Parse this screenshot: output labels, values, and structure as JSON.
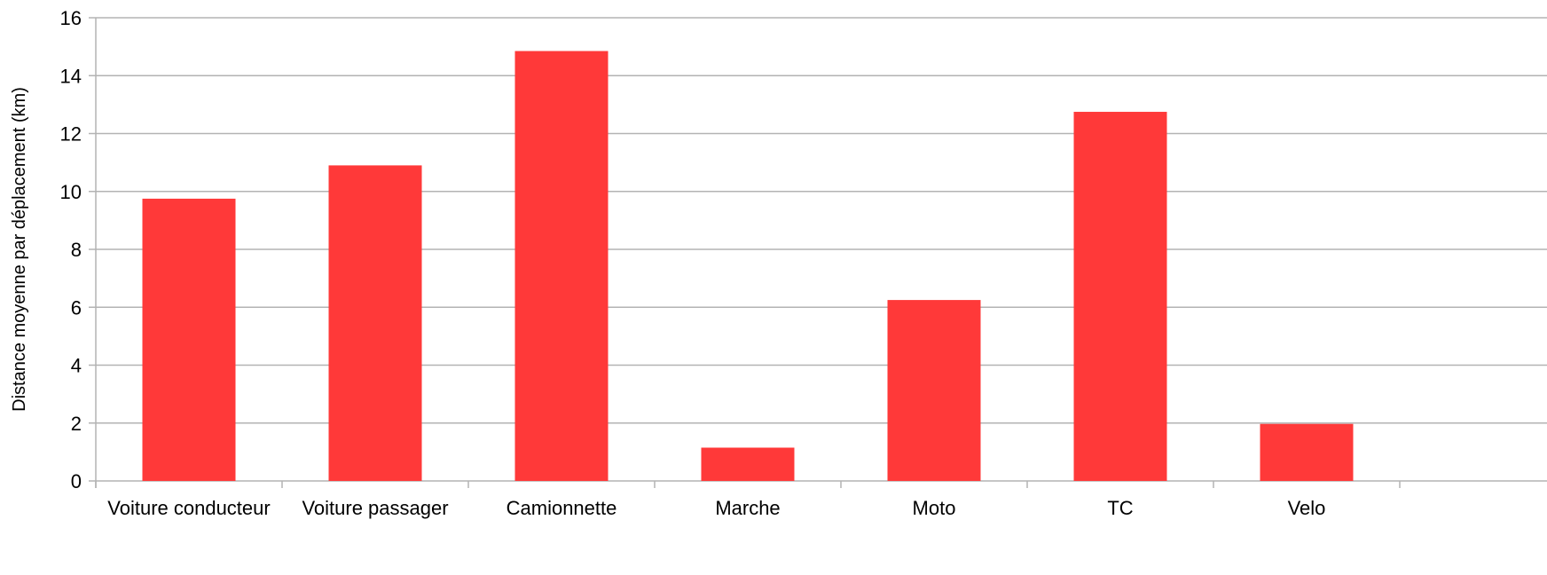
{
  "chart_data": {
    "type": "bar",
    "title": "",
    "xlabel": "",
    "ylabel": "Distance moyenne par déplacement (km)",
    "categories": [
      "Voiture conducteur",
      "Voiture passager",
      "Camionnette",
      "Marche",
      "Moto",
      "TC",
      "Velo"
    ],
    "values": [
      9.75,
      10.9,
      14.85,
      1.15,
      6.25,
      12.75,
      1.97
    ],
    "ylim": [
      0,
      16
    ],
    "yticks": [
      0,
      2,
      4,
      6,
      8,
      10,
      12,
      14,
      16
    ],
    "grid": true,
    "legend": "none",
    "colors": {
      "bar": "#ff3939",
      "grid": "#b3b3b3",
      "axis": "#b3b3b3",
      "text": "#000000"
    }
  }
}
